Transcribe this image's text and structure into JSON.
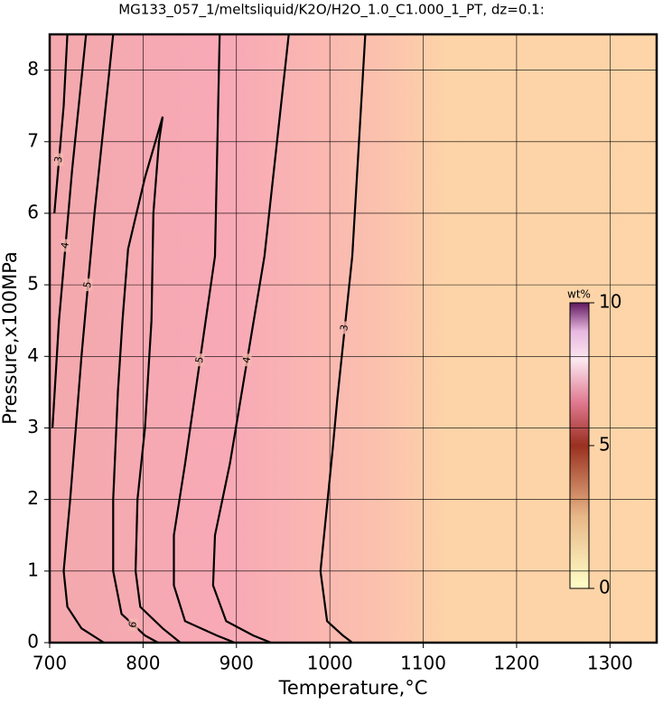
{
  "chart_data": {
    "type": "contour",
    "title": "MG133_057_1/meltsliquid/K2O/H2O_1.0_C1.000_1_PT, dz=0.1:",
    "x_label": "Temperature,°C",
    "y_label": "Pressure,x100MPa",
    "xlim": [
      700,
      1350
    ],
    "ylim": [
      0,
      8.5
    ],
    "xticks": [
      700,
      800,
      900,
      1000,
      1100,
      1200,
      1300
    ],
    "yticks": [
      0,
      1,
      2,
      3,
      4,
      5,
      6,
      7,
      8
    ],
    "grid": true,
    "colorbar": {
      "label": "wt%",
      "lim": [
        0,
        10
      ],
      "ticks": [
        0,
        5,
        10
      ]
    },
    "contours": [
      {
        "level": 3,
        "x": [
          1038,
          1024,
          1008,
          1003,
          990,
          997,
          1014,
          1024
        ],
        "y": [
          8.5,
          5.4,
          3.4,
          2.7,
          1,
          0.3,
          0.1,
          0
        ]
      },
      {
        "level": 4,
        "x": [
          956,
          930,
          893,
          877,
          875,
          889,
          918,
          937
        ],
        "y": [
          8.5,
          5.4,
          2.5,
          1.5,
          0.8,
          0.3,
          0.1,
          0
        ]
      },
      {
        "level": 5,
        "x": [
          882,
          877,
          845,
          833,
          833,
          845,
          879,
          898
        ],
        "y": [
          8.5,
          5.4,
          2.5,
          1.5,
          0.8,
          0.3,
          0.1,
          0
        ]
      },
      {
        "level": 6,
        "x": [
          816,
          802,
          777,
          768,
          768,
          773,
          778,
          784,
          802,
          821,
          817,
          811,
          809,
          802,
          794,
          792,
          797,
          821,
          840
        ],
        "y": [
          0,
          0.1,
          0.4,
          1,
          2,
          3.5,
          4.5,
          5.5,
          6.5,
          7.35,
          7,
          6,
          4.5,
          3,
          2,
          1,
          0.5,
          0.2,
          0
        ]
      },
      {
        "level": 5,
        "x": [
          768,
          748,
          734,
          722,
          715,
          719,
          734,
          758
        ],
        "y": [
          8.5,
          6,
          4,
          2,
          1,
          0.5,
          0.2,
          0
        ]
      },
      {
        "level": 4,
        "x": [
          739,
          724,
          710,
          703
        ],
        "y": [
          8.5,
          6.6,
          4.5,
          3
        ]
      },
      {
        "level": 3,
        "x": [
          719,
          715,
          705
        ],
        "y": [
          8.5,
          7.5,
          6
        ]
      }
    ]
  }
}
